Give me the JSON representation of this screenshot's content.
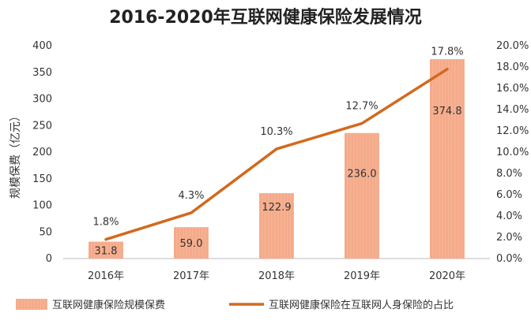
{
  "chart_data": {
    "type": "bar",
    "title": "2016-2020年互联网健康保险发展情况",
    "categories": [
      "2016年",
      "2017年",
      "2018年",
      "2019年",
      "2020年"
    ],
    "series": [
      {
        "name": "互联网健康保险规模保费",
        "type": "bar",
        "axis": "left",
        "values": [
          31.8,
          59.0,
          122.9,
          236.0,
          374.8
        ],
        "labels": [
          "31.8",
          "59.0",
          "122.9",
          "236.0",
          "374.8"
        ],
        "color": "#F4A582"
      },
      {
        "name": "互联网健康保险在互联网人身保险的占比",
        "type": "line",
        "axis": "right",
        "values": [
          1.8,
          4.3,
          10.3,
          12.7,
          17.8
        ],
        "labels": [
          "1.8%",
          "4.3%",
          "10.3%",
          "12.7%",
          "17.8%"
        ],
        "color": "#D2691E"
      }
    ],
    "ylabel": "规模保费（亿元）",
    "y_left": {
      "min": 0,
      "max": 400,
      "step": 50,
      "ticks": [
        "0",
        "50",
        "100",
        "150",
        "200",
        "250",
        "300",
        "350",
        "400"
      ]
    },
    "y_right": {
      "min": 0,
      "max": 20,
      "step": 2,
      "ticks": [
        "0.0%",
        "2.0%",
        "4.0%",
        "6.0%",
        "8.0%",
        "10.0%",
        "12.0%",
        "14.0%",
        "16.0%",
        "18.0%",
        "20.0%"
      ]
    },
    "grid": false,
    "legend_position": "bottom"
  }
}
